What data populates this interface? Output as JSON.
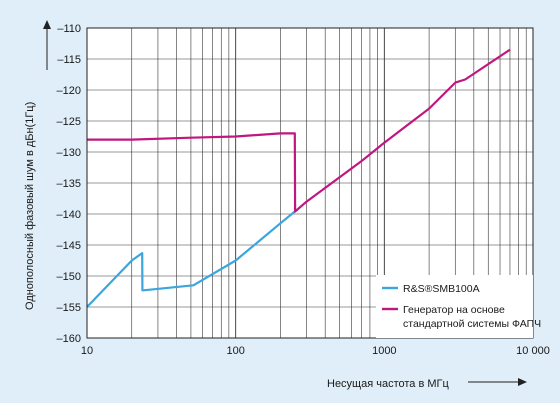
{
  "chart_data": {
    "type": "line",
    "x_scale": "log",
    "xlim": [
      10,
      10000
    ],
    "ylim": [
      -160,
      -110
    ],
    "x_ticks": [
      10,
      100,
      1000,
      10000
    ],
    "x_tick_labels": [
      "10",
      "100",
      "1000",
      "10 000"
    ],
    "y_ticks": [
      -160,
      -155,
      -150,
      -145,
      -140,
      -135,
      -130,
      -125,
      -120,
      -115,
      -110
    ],
    "y_tick_labels": [
      "–160",
      "–155",
      "–150",
      "–145",
      "–140",
      "–135",
      "–130",
      "–125",
      "–120",
      "–115",
      "–110"
    ],
    "xlabel": "Несущая частота в МГц",
    "ylabel": "Однополосный фазовый шум в дБн(1Гц)",
    "grid": true,
    "legend_position": "bottom-right",
    "series": [
      {
        "name": "R&S®SMB100A",
        "color": "#3aa6dd",
        "x": [
          10,
          20,
          23.5,
          23.6,
          24,
          52,
          100,
          200,
          250
        ],
        "y": [
          -155,
          -147.5,
          -146.3,
          -152.3,
          -152.3,
          -151.5,
          -147.5,
          -141.5,
          -139.6
        ]
      },
      {
        "name": "Генератор на основе стандартной системы ФАПЧ",
        "color": "#c0177f",
        "x": [
          10,
          20,
          50,
          100,
          200,
          250,
          251,
          300,
          700,
          1000,
          2000,
          3000,
          3500,
          7000
        ],
        "y": [
          -128,
          -128,
          -127.7,
          -127.5,
          -127,
          -127,
          -139.6,
          -138,
          -131.5,
          -128.5,
          -123,
          -118.8,
          -118.3,
          -113.5
        ]
      }
    ]
  }
}
